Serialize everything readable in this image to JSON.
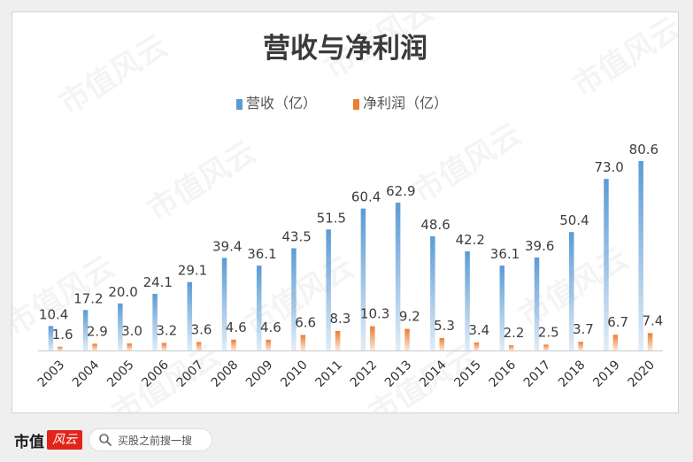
{
  "chart_data": {
    "type": "bar",
    "title": "营收与净利润",
    "categories": [
      "2003",
      "2004",
      "2005",
      "2006",
      "2007",
      "2008",
      "2009",
      "2010",
      "2011",
      "2012",
      "2013",
      "2014",
      "2015",
      "2016",
      "2017",
      "2018",
      "2019",
      "2020"
    ],
    "series": [
      {
        "name": "营收（亿）",
        "color": "#5b9bd5",
        "values": [
          10.4,
          17.2,
          20.0,
          24.1,
          29.1,
          39.4,
          36.1,
          43.5,
          51.5,
          60.4,
          62.9,
          48.6,
          42.2,
          36.1,
          39.6,
          50.4,
          73.0,
          80.6
        ]
      },
      {
        "name": "净利润（亿）",
        "color": "#ed7d31",
        "values": [
          1.6,
          2.9,
          3.0,
          3.2,
          3.6,
          4.6,
          4.6,
          6.6,
          8.3,
          10.3,
          9.2,
          5.3,
          3.4,
          2.2,
          2.5,
          3.7,
          6.7,
          7.4
        ]
      }
    ],
    "ylim": [
      0,
      82
    ],
    "legend": "top-center",
    "grid": false
  },
  "watermark": "市值风云",
  "footer": {
    "brand": "市值",
    "brand_mark": "风云",
    "search_placeholder": "买股之前搜一搜"
  }
}
